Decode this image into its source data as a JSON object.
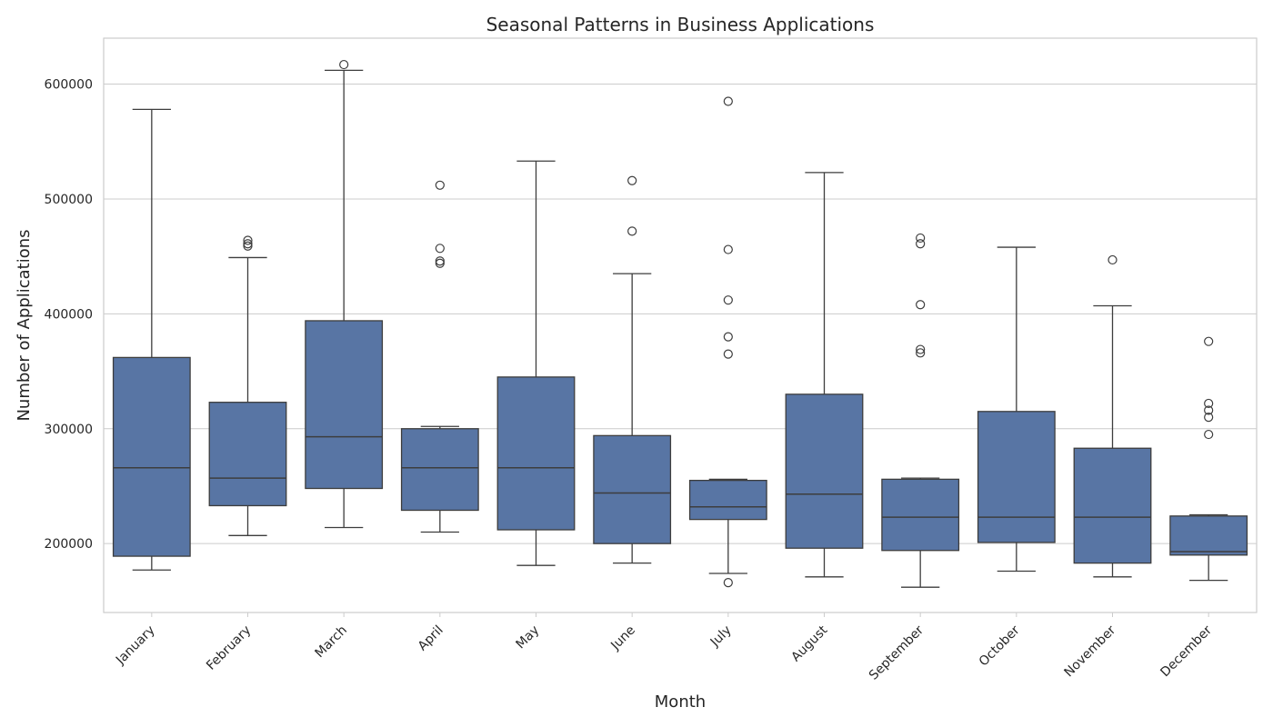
{
  "chart_data": {
    "type": "box",
    "title": "Seasonal Patterns in Business Applications",
    "xlabel": "Month",
    "ylabel": "Number of Applications",
    "ylim": [
      140000,
      640000
    ],
    "yticks": [
      200000,
      300000,
      400000,
      500000,
      600000
    ],
    "ytick_labels": [
      "200000",
      "300000",
      "400000",
      "500000",
      "600000"
    ],
    "grid": true,
    "colors": {
      "box_fill": "#5875a4",
      "line": "#3d3d3d",
      "grid": "#cccccc",
      "frame": "#cccccc"
    },
    "categories": [
      "January",
      "February",
      "March",
      "April",
      "May",
      "June",
      "July",
      "August",
      "September",
      "October",
      "November",
      "December"
    ],
    "boxes": [
      {
        "whisker_low": 177000,
        "q1": 189000,
        "median": 266000,
        "q3": 362000,
        "whisker_high": 578000,
        "outliers": []
      },
      {
        "whisker_low": 207000,
        "q1": 233000,
        "median": 257000,
        "q3": 323000,
        "whisker_high": 449000,
        "outliers": [
          459000,
          461000,
          464000
        ]
      },
      {
        "whisker_low": 214000,
        "q1": 248000,
        "median": 293000,
        "q3": 394000,
        "whisker_high": 612000,
        "outliers": [
          617000
        ]
      },
      {
        "whisker_low": 210000,
        "q1": 229000,
        "median": 266000,
        "q3": 300000,
        "whisker_high": 302000,
        "outliers": [
          444000,
          446000,
          457000,
          512000
        ]
      },
      {
        "whisker_low": 181000,
        "q1": 212000,
        "median": 266000,
        "q3": 345000,
        "whisker_high": 533000,
        "outliers": []
      },
      {
        "whisker_low": 183000,
        "q1": 200000,
        "median": 244000,
        "q3": 294000,
        "whisker_high": 435000,
        "outliers": [
          472000,
          516000
        ]
      },
      {
        "whisker_low": 174000,
        "q1": 221000,
        "median": 232000,
        "q3": 255000,
        "whisker_high": 256000,
        "outliers": [
          166000,
          365000,
          380000,
          412000,
          456000,
          585000
        ]
      },
      {
        "whisker_low": 171000,
        "q1": 196000,
        "median": 243000,
        "q3": 330000,
        "whisker_high": 523000,
        "outliers": []
      },
      {
        "whisker_low": 162000,
        "q1": 194000,
        "median": 223000,
        "q3": 256000,
        "whisker_high": 257000,
        "outliers": [
          366000,
          369000,
          408000,
          461000,
          466000
        ]
      },
      {
        "whisker_low": 176000,
        "q1": 201000,
        "median": 223000,
        "q3": 315000,
        "whisker_high": 458000,
        "outliers": []
      },
      {
        "whisker_low": 171000,
        "q1": 183000,
        "median": 223000,
        "q3": 283000,
        "whisker_high": 407000,
        "outliers": [
          447000
        ]
      },
      {
        "whisker_low": 168000,
        "q1": 190000,
        "median": 193000,
        "q3": 224000,
        "whisker_high": 225000,
        "outliers": [
          295000,
          310000,
          316000,
          322000,
          376000
        ]
      }
    ]
  }
}
